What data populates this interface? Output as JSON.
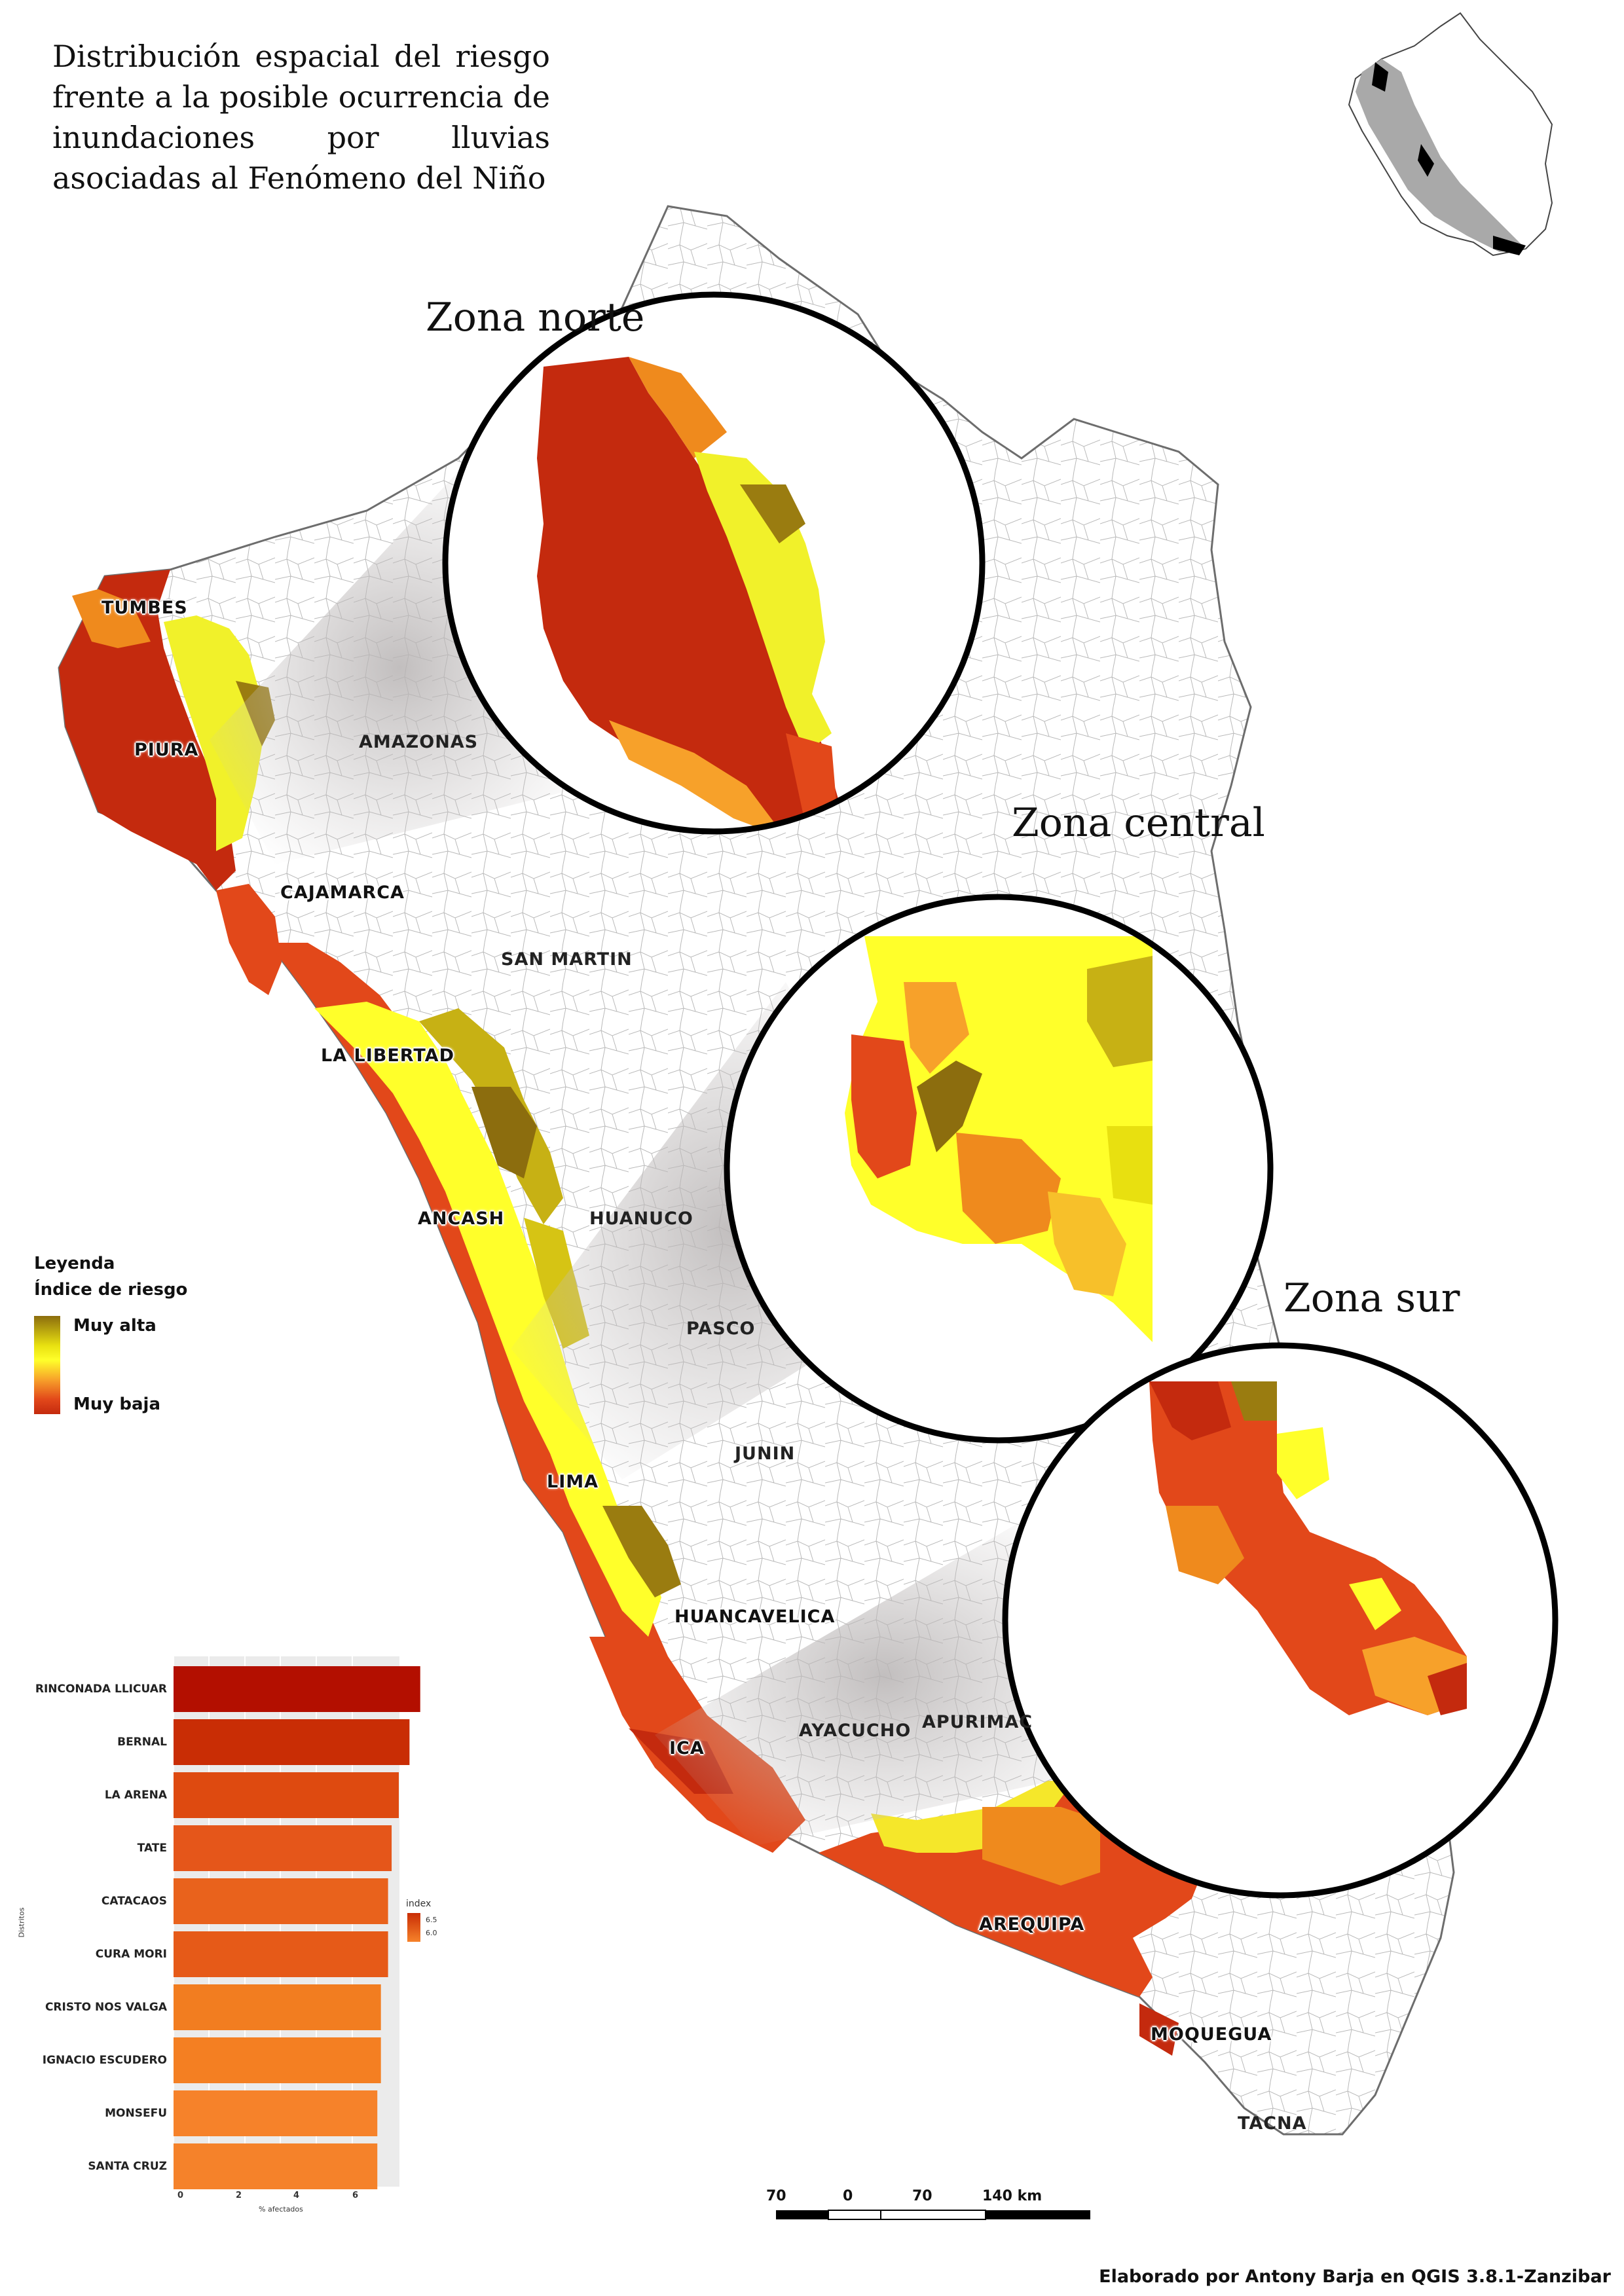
{
  "title": "Distribución espacial del riesgo frente a la posible ocurrencia de inundaciones por lluvias asociadas al Fenómeno del Niño",
  "zones": {
    "north": "Zona norte",
    "central": "Zona central",
    "south": "Zona sur"
  },
  "regions": {
    "tumbes": "TUMBES",
    "piura": "PIURA",
    "amazonas": "AMAZONAS",
    "cajamarca": "CAJAMARCA",
    "san_martin": "SAN MARTIN",
    "la_libertad": "LA LIBERTAD",
    "ancash": "ANCASH",
    "huanuco": "HUANUCO",
    "pasco": "PASCO",
    "lima": "LIMA",
    "junin": "JUNIN",
    "huancavelica": "HUANCAVELICA",
    "ica": "ICA",
    "ayacucho": "AYACUCHO",
    "apurimac": "APURIMAC",
    "arequipa": "AREQUIPA",
    "moquegua": "MOQUEGUA",
    "tacna": "TACNA"
  },
  "legend": {
    "heading": "Leyenda",
    "subtitle": "Índice de riesgo",
    "high": "Muy alta",
    "low": "Muy baja",
    "colors": [
      "#8c6d0e",
      "#e8e010",
      "#ffff2a",
      "#f7a12a",
      "#e2481a",
      "#c42a0e"
    ]
  },
  "scale_bar": {
    "labels": [
      "70",
      "0",
      "70",
      "140 km"
    ]
  },
  "credit": "Elaborado por Antony Barja en QGIS 3.8.1-Zanzibar",
  "chart_data": {
    "type": "bar",
    "orientation": "horizontal",
    "categories": [
      "RINCONADA LLICUAR",
      "BERNAL",
      "LA ARENA",
      "TATE",
      "CATACAOS",
      "CURA MORI",
      "CRISTO NOS VALGA",
      "IGNACIO ESCUDERO",
      "MONSEFU",
      "SANTA CRUZ"
    ],
    "values": [
      6.9,
      6.6,
      6.3,
      6.1,
      6.0,
      6.0,
      5.8,
      5.8,
      5.7,
      5.7
    ],
    "colors": [
      "#b30f00",
      "#c92d05",
      "#de4a10",
      "#e5561a",
      "#e9621c",
      "#e65a18",
      "#f27d20",
      "#f47f22",
      "#f6822a",
      "#f5822a"
    ],
    "xlabel": "% afectados",
    "ylabel": "Distritos",
    "xticks": [
      0,
      2,
      4,
      6
    ],
    "xlim": [
      0,
      7
    ],
    "legend_title": "index",
    "legend_values": [
      "6.5",
      "6.0"
    ]
  }
}
